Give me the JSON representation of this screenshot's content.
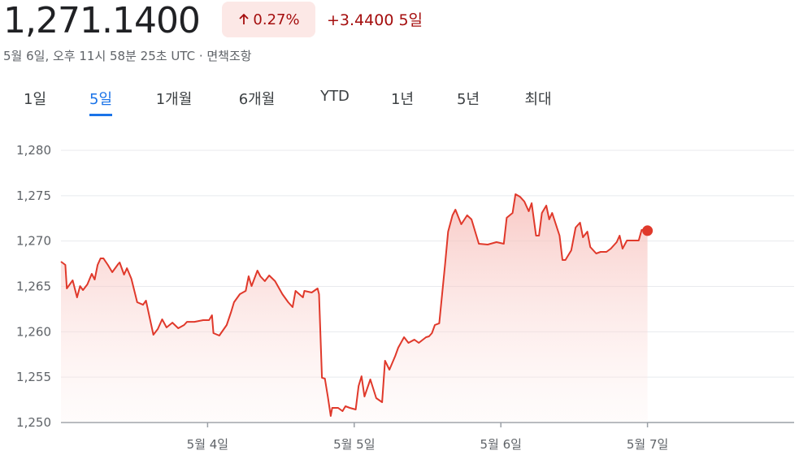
{
  "header": {
    "price": "1,271.1400",
    "change_pct": "0.27%",
    "change_abs": "+3.4400",
    "period": "5일",
    "timestamp": "5월 6일, 오후 11시 58분 25초 UTC",
    "disclaimer": "면책조항"
  },
  "tabs": [
    "1일",
    "5일",
    "1개월",
    "6개월",
    "YTD",
    "1년",
    "5년",
    "최대"
  ],
  "active_tab": 1,
  "chart_data": {
    "type": "line",
    "color": "#e0392b",
    "fill": true,
    "grid": true,
    "xlim": [
      3,
      8
    ],
    "xticks": [
      {
        "value": 4,
        "label": "5월 4일"
      },
      {
        "value": 5,
        "label": "5월 5일"
      },
      {
        "value": 6,
        "label": "5월 6일"
      },
      {
        "value": 7,
        "label": "5월 7일"
      }
    ],
    "ylim": [
      1250,
      1280
    ],
    "yticks": [
      {
        "value": 1250,
        "label": "1,250"
      },
      {
        "value": 1255,
        "label": "1,255"
      },
      {
        "value": 1260,
        "label": "1,260"
      },
      {
        "value": 1265,
        "label": "1,265"
      },
      {
        "value": 1270,
        "label": "1,270"
      },
      {
        "value": 1275,
        "label": "1,275"
      },
      {
        "value": 1280,
        "label": "1,280"
      }
    ],
    "x": [
      3.0,
      3.03,
      3.04,
      3.08,
      3.11,
      3.13,
      3.15,
      3.18,
      3.21,
      3.23,
      3.25,
      3.27,
      3.29,
      3.32,
      3.35,
      3.39,
      3.4,
      3.43,
      3.45,
      3.48,
      3.52,
      3.56,
      3.58,
      3.63,
      3.66,
      3.69,
      3.72,
      3.76,
      3.8,
      3.84,
      3.86,
      3.91,
      3.97,
      4.01,
      4.03,
      4.04,
      4.08,
      4.13,
      4.16,
      4.18,
      4.22,
      4.26,
      4.28,
      4.3,
      4.34,
      4.36,
      4.39,
      4.42,
      4.46,
      4.51,
      4.55,
      4.58,
      4.6,
      4.65,
      4.66,
      4.71,
      4.75,
      4.76,
      4.78,
      4.8,
      4.82,
      4.84,
      4.85,
      4.89,
      4.92,
      4.94,
      4.97,
      5.01,
      5.03,
      5.05,
      5.07,
      5.11,
      5.15,
      5.19,
      5.21,
      5.24,
      5.28,
      5.3,
      5.34,
      5.37,
      5.41,
      5.44,
      5.49,
      5.51,
      5.53,
      5.55,
      5.58,
      5.62,
      5.64,
      5.67,
      5.69,
      5.73,
      5.77,
      5.8,
      5.85,
      5.91,
      5.97,
      6.02,
      6.04,
      6.08,
      6.1,
      6.13,
      6.16,
      6.19,
      6.21,
      6.24,
      6.26,
      6.28,
      6.31,
      6.33,
      6.35,
      6.4,
      6.42,
      6.44,
      6.48,
      6.51,
      6.54,
      6.56,
      6.59,
      6.61,
      6.65,
      6.68,
      6.72,
      6.75,
      6.79,
      6.81,
      6.83,
      6.86,
      6.94,
      6.96,
      7.0
    ],
    "values": [
      1267.73,
      1267.37,
      1264.78,
      1265.67,
      1263.79,
      1265.04,
      1264.6,
      1265.22,
      1266.39,
      1265.76,
      1267.37,
      1268.09,
      1268.09,
      1267.37,
      1266.57,
      1267.46,
      1267.64,
      1266.3,
      1267.01,
      1265.85,
      1263.25,
      1262.98,
      1263.43,
      1259.67,
      1260.3,
      1261.37,
      1260.48,
      1261.01,
      1260.39,
      1260.75,
      1261.1,
      1261.1,
      1261.28,
      1261.28,
      1261.82,
      1259.85,
      1259.58,
      1260.75,
      1262.18,
      1263.25,
      1264.15,
      1264.51,
      1266.12,
      1265.04,
      1266.75,
      1266.12,
      1265.58,
      1266.21,
      1265.58,
      1264.15,
      1263.25,
      1262.72,
      1264.51,
      1263.79,
      1264.51,
      1264.33,
      1264.78,
      1264.15,
      1254.93,
      1254.84,
      1252.87,
      1250.72,
      1251.61,
      1251.61,
      1251.25,
      1251.79,
      1251.61,
      1251.43,
      1254.03,
      1255.1,
      1252.87,
      1254.75,
      1252.69,
      1252.24,
      1256.81,
      1255.82,
      1257.34,
      1258.24,
      1259.4,
      1258.78,
      1259.13,
      1258.78,
      1259.4,
      1259.49,
      1259.85,
      1260.75,
      1260.93,
      1267.46,
      1271.04,
      1272.84,
      1273.46,
      1271.85,
      1272.84,
      1272.39,
      1269.7,
      1269.61,
      1269.88,
      1269.7,
      1272.57,
      1273.1,
      1275.16,
      1274.89,
      1274.36,
      1273.28,
      1274.17,
      1270.6,
      1270.6,
      1273.1,
      1273.91,
      1272.39,
      1273.1,
      1270.6,
      1267.91,
      1267.91,
      1268.98,
      1271.49,
      1272.03,
      1270.42,
      1271.04,
      1269.34,
      1268.63,
      1268.81,
      1268.81,
      1269.16,
      1269.88,
      1270.6,
      1269.16,
      1270.06,
      1270.06,
      1271.22,
      1271.14
    ]
  }
}
